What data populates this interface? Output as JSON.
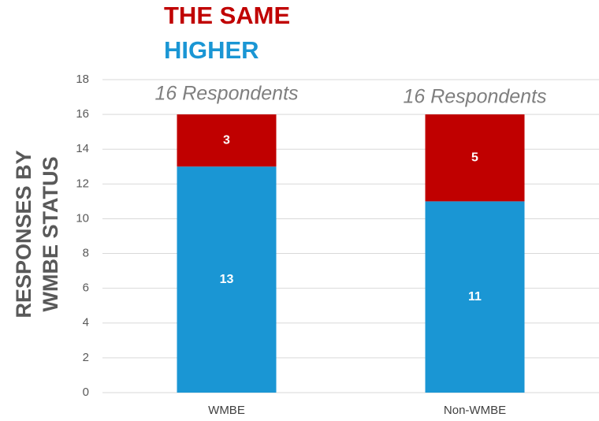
{
  "chart_data": {
    "type": "stacked_bar",
    "categories": [
      "WMBE",
      "Non-WMBE"
    ],
    "series": [
      {
        "name": "HIGHER",
        "color": "#1a96d4",
        "values": [
          13,
          11
        ]
      },
      {
        "name": "THE SAME",
        "color": "#c00000",
        "values": [
          3,
          5
        ]
      }
    ],
    "annotations": [
      "16 Respondents",
      "16 Respondents"
    ],
    "ylabel": [
      "RESPONSES BY",
      "WMBE STATUS"
    ],
    "ylim": [
      0,
      18
    ],
    "yticks": [
      0,
      2,
      4,
      6,
      8,
      10,
      12,
      14,
      16,
      18
    ],
    "grid": true,
    "legend": "top"
  }
}
